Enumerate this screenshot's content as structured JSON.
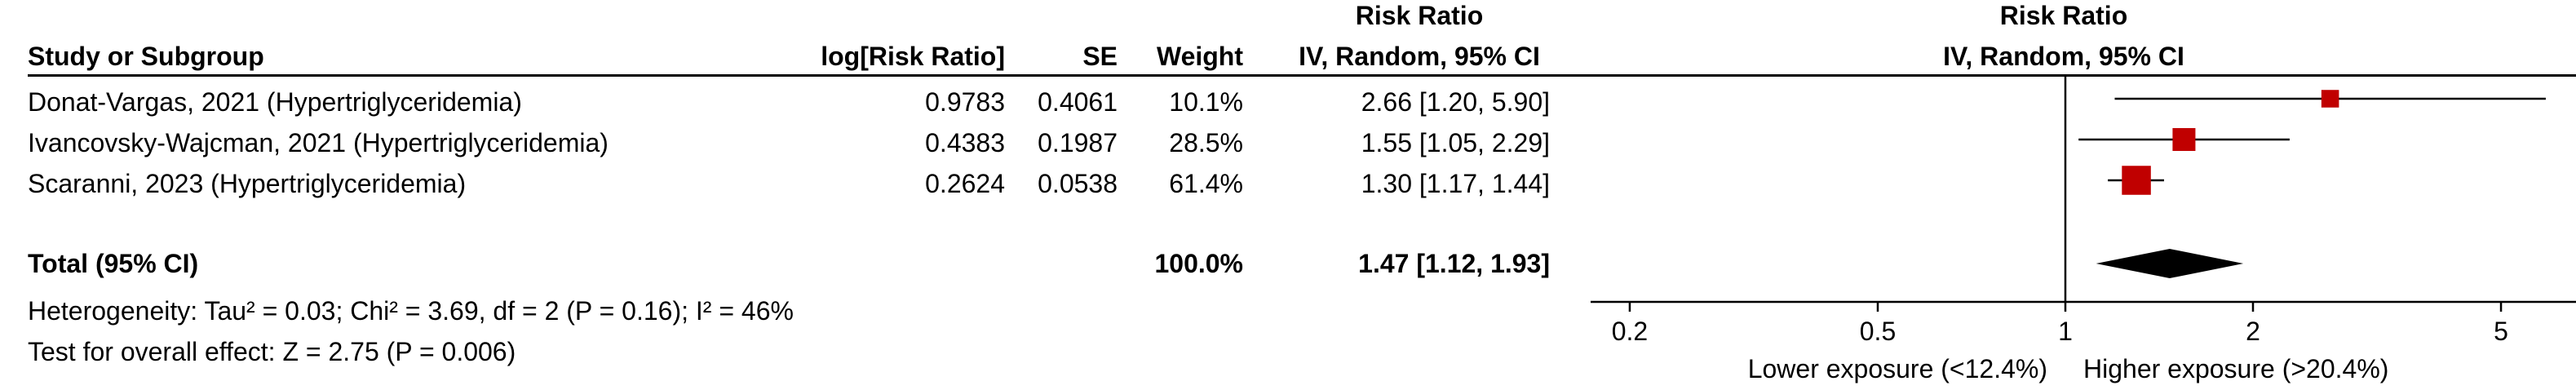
{
  "columns": {
    "study": "Study or Subgroup",
    "log_rr": "log[Risk Ratio]",
    "se": "SE",
    "weight": "Weight",
    "rr_table_top": "Risk Ratio",
    "rr_table_bottom": "IV, Random, 95% CI",
    "rr_plot_top": "Risk Ratio",
    "rr_plot_bottom": "IV, Random, 95% CI"
  },
  "studies": [
    {
      "name": "Donat-Vargas, 2021 (Hypertriglyceridemia)",
      "log_rr": "0.9783",
      "se": "0.4061",
      "weight": "10.1%",
      "ci_text": "2.66 [1.20, 5.90]"
    },
    {
      "name": "Ivancovsky-Wajcman, 2021 (Hypertriglyceridemia)",
      "log_rr": "0.4383",
      "se": "0.1987",
      "weight": "28.5%",
      "ci_text": "1.55 [1.05, 2.29]"
    },
    {
      "name": "Scaranni, 2023 (Hypertriglyceridemia)",
      "log_rr": "0.2624",
      "se": "0.0538",
      "weight": "61.4%",
      "ci_text": "1.30 [1.17, 1.44]"
    }
  ],
  "total": {
    "label": "Total (95% CI)",
    "weight": "100.0%",
    "ci_text": "1.47 [1.12, 1.93]"
  },
  "heterogeneity": "Heterogeneity: Tau² = 0.03; Chi² = 3.69, df = 2 (P = 0.16); I² = 46%",
  "overall_effect": "Test for overall effect: Z = 2.75 (P = 0.006)",
  "colors": {
    "marker": "#c00000",
    "line": "#000000",
    "diamond": "#000000"
  },
  "chart_data": {
    "type": "forest",
    "x_scale": "log",
    "xlim": [
      0.2,
      5
    ],
    "ticks": [
      0.2,
      0.5,
      1,
      2,
      5
    ],
    "tick_labels": [
      "0.2",
      "0.5",
      "1",
      "2",
      "5"
    ],
    "reference": 1,
    "left_label": "Lower exposure (<12.4%)",
    "right_label": "Higher exposure (>20.4%)",
    "studies": [
      {
        "rr": 2.66,
        "lower": 1.2,
        "upper": 5.9,
        "weight": 10.1
      },
      {
        "rr": 1.55,
        "lower": 1.05,
        "upper": 2.29,
        "weight": 28.5
      },
      {
        "rr": 1.3,
        "lower": 1.17,
        "upper": 1.44,
        "weight": 61.4
      }
    ],
    "pooled": {
      "rr": 1.47,
      "lower": 1.12,
      "upper": 1.93
    }
  }
}
